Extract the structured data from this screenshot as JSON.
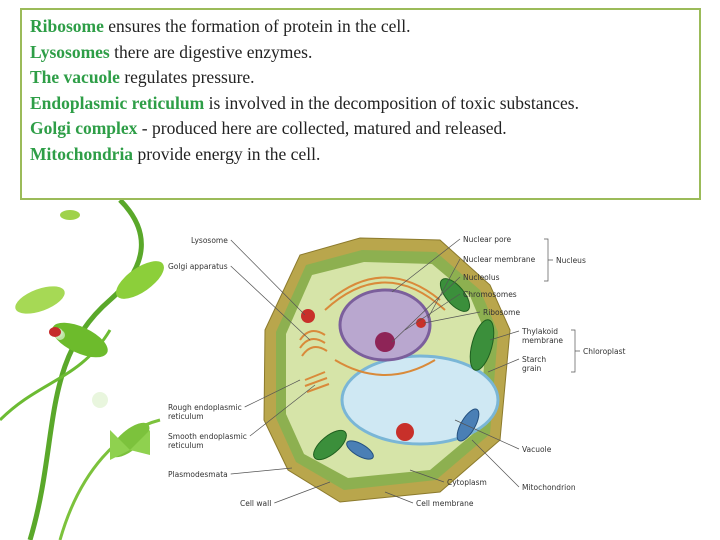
{
  "text_box": {
    "items": [
      {
        "term": "Ribosome",
        "description": "ensures the formation of protein in the cell."
      },
      {
        "term": "Lysosomes",
        "description": "there are digestive enzymes."
      },
      {
        "term": "The vacuole",
        "description": "regulates pressure."
      },
      {
        "term": "Endoplasmic reticulum",
        "description": "is involved in the decomposition of toxic substances."
      },
      {
        "term": "Golgi complex",
        "description": "- produced here are collected, matured and released."
      },
      {
        "term": "Mitochondria",
        "description": "provide energy in the cell."
      }
    ]
  },
  "diagram": {
    "left_labels": [
      [
        "Lysosome"
      ],
      [
        "Golgi apparatus"
      ],
      [
        "Rough endoplasmic",
        "reticulum"
      ],
      [
        "Smooth endoplasmic",
        "reticulum"
      ],
      [
        "Plasmodesmata"
      ],
      [
        "Cell wall"
      ]
    ],
    "right_labels": [
      [
        "Nuclear pore"
      ],
      [
        "Nuclear membrane"
      ],
      [
        "Nucleolus"
      ],
      [
        "Chromosomes"
      ],
      [
        "Ribosome"
      ],
      [
        "Thylakoid",
        "membrane"
      ],
      [
        "Starch",
        "grain"
      ],
      [
        "Vacuole"
      ],
      [
        "Cytoplasm"
      ],
      [
        "Mitochondrion"
      ],
      [
        "Cell membrane"
      ]
    ],
    "groups": [
      "Nucleus",
      "Chloroplast"
    ]
  }
}
